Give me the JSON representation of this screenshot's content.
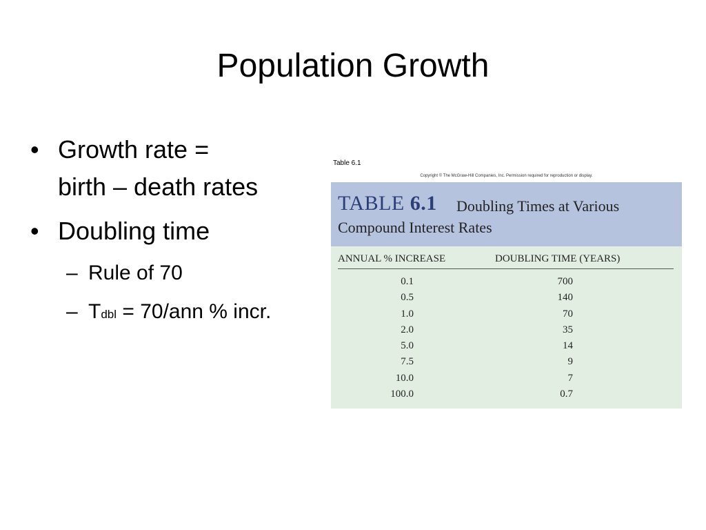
{
  "slide": {
    "title": "Population Growth",
    "bullets": [
      {
        "line1": "Growth rate =",
        "line2": "birth – death rates"
      },
      {
        "text": "Doubling time"
      }
    ],
    "sub_bullets": [
      {
        "text": "Rule of 70"
      },
      {
        "prefix": "T",
        "subscript": "dbl",
        "rest": " = 70/ann % incr."
      }
    ]
  },
  "figure": {
    "label": "Table 6.1",
    "copyright": "Copyright © The McGraw-Hill Companies, Inc. Permission required for reproduction or display.",
    "table_word": "TABLE",
    "table_number": "6.1",
    "title_line1": "Doubling Times at Various",
    "title_line2": "Compound Interest Rates",
    "columns": [
      "ANNUAL % INCREASE",
      "DOUBLING TIME (YEARS)"
    ],
    "rows": [
      [
        "0.1",
        "700"
      ],
      [
        "0.5",
        "140"
      ],
      [
        "1.0",
        "70"
      ],
      [
        "2.0",
        "35"
      ],
      [
        "5.0",
        "14"
      ],
      [
        "7.5",
        "9"
      ],
      [
        "10.0",
        "7"
      ],
      [
        "100.0",
        "0.7"
      ]
    ]
  },
  "colors": {
    "table_header_bg": "#b5c3df",
    "table_body_bg": "#e3eee3",
    "table_title_blue": "#2b3e78"
  }
}
